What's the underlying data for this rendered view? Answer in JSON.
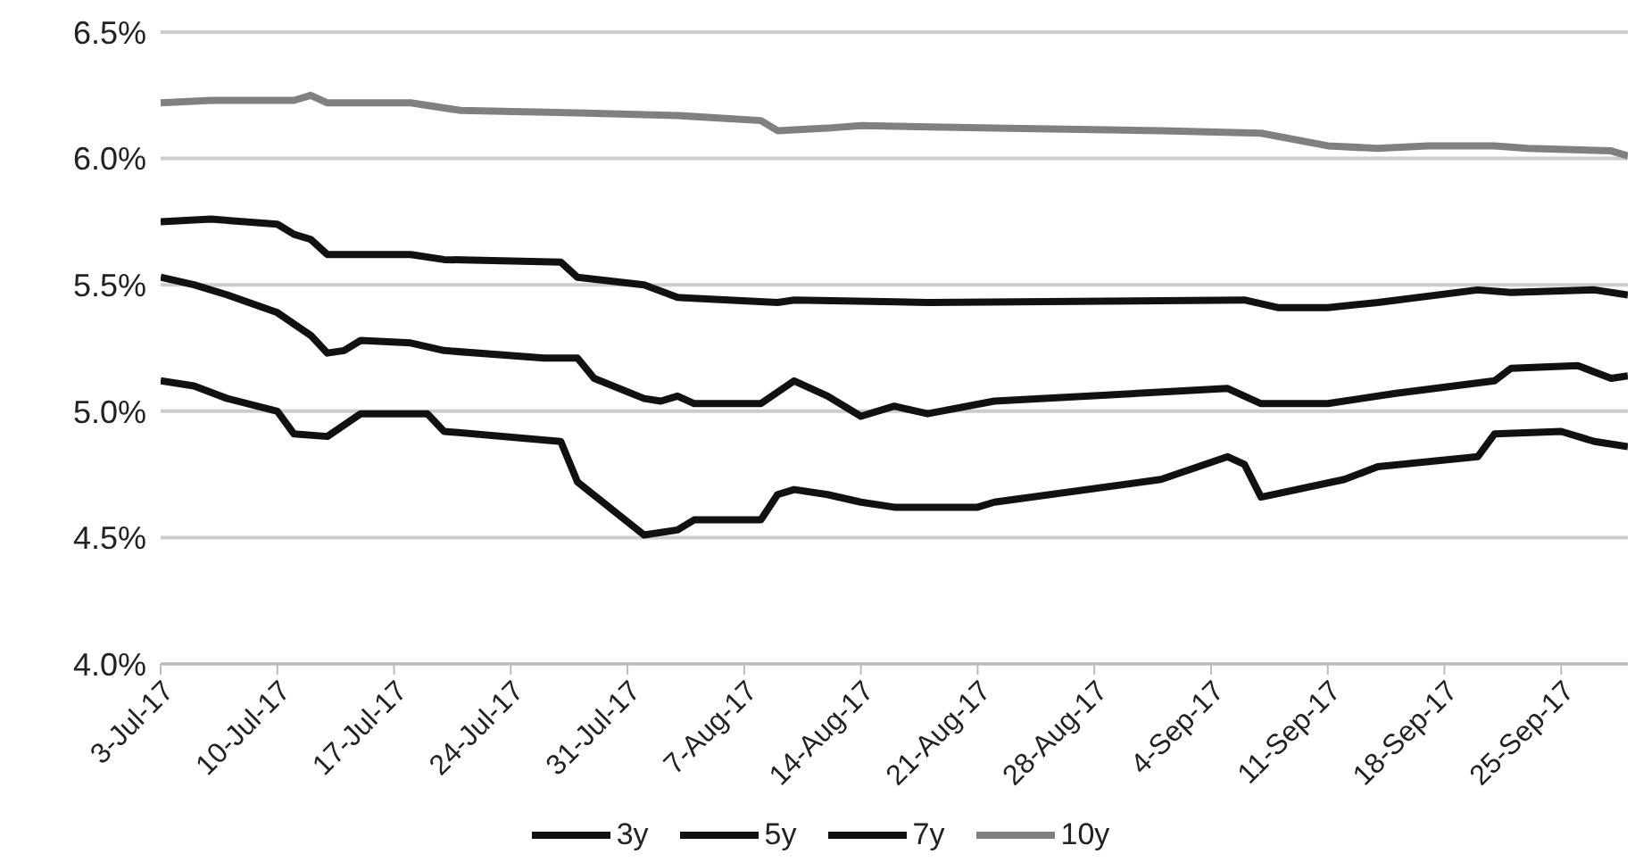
{
  "chart_data": {
    "type": "line",
    "xlim": [
      "--07-03",
      "--09-29"
    ],
    "xticks": [
      {
        "value": "--07-03",
        "label": "3-Jul-17"
      },
      {
        "value": "--07-10",
        "label": "10-Jul-17"
      },
      {
        "value": "--07-17",
        "label": "17-Jul-17"
      },
      {
        "value": "--07-24",
        "label": "24-Jul-17"
      },
      {
        "value": "--07-31",
        "label": "31-Jul-17"
      },
      {
        "value": "--08-07",
        "label": "7-Aug-17"
      },
      {
        "value": "--08-14",
        "label": "14-Aug-17"
      },
      {
        "value": "--08-21",
        "label": "21-Aug-17"
      },
      {
        "value": "--08-28",
        "label": "28-Aug-17"
      },
      {
        "value": "--09-04",
        "label": "4-Sep-17"
      },
      {
        "value": "--09-11",
        "label": "11-Sep-17"
      },
      {
        "value": "--09-18",
        "label": "18-Sep-17"
      },
      {
        "value": "--09-25",
        "label": "25-Sep-17"
      }
    ],
    "ylim": [
      4.0,
      6.5
    ],
    "yticks": [
      {
        "value": 4.0,
        "label": "4.0%"
      },
      {
        "value": 4.5,
        "label": "4.5%"
      },
      {
        "value": 5.0,
        "label": "5.0%"
      },
      {
        "value": 5.5,
        "label": "5.5%"
      },
      {
        "value": 6.0,
        "label": "6.0%"
      },
      {
        "value": 6.5,
        "label": "6.5%"
      }
    ],
    "grid": "y",
    "legend": "bottom",
    "marker": "none",
    "line_style": "solid",
    "series": [
      {
        "name": "3y",
        "color": "#111111",
        "x": [
          "--07-03",
          "--07-05",
          "--07-07",
          "--07-10",
          "--07-11",
          "--07-13",
          "--07-15",
          "--07-19",
          "--07-20",
          "--07-27",
          "--07-28",
          "--08-01",
          "--08-03",
          "--08-04",
          "--08-08",
          "--08-09",
          "--08-10",
          "--08-12",
          "--08-14",
          "--08-16",
          "--08-21",
          "--08-22",
          "--09-01",
          "--09-05",
          "--09-06",
          "--09-07",
          "--09-12",
          "--09-14",
          "--09-20",
          "--09-21",
          "--09-25",
          "--09-27",
          "--09-29"
        ],
        "values": [
          5.12,
          5.1,
          5.05,
          5.0,
          4.91,
          4.9,
          4.99,
          4.99,
          4.92,
          4.88,
          4.72,
          4.51,
          4.53,
          4.57,
          4.57,
          4.67,
          4.69,
          4.67,
          4.64,
          4.62,
          4.62,
          4.64,
          4.73,
          4.82,
          4.79,
          4.66,
          4.73,
          4.78,
          4.82,
          4.91,
          4.92,
          4.88,
          4.86
        ]
      },
      {
        "name": "5y",
        "color": "#111111",
        "x": [
          "--07-03",
          "--07-05",
          "--07-07",
          "--07-10",
          "--07-12",
          "--07-13",
          "--07-14",
          "--07-15",
          "--07-18",
          "--07-20",
          "--07-26",
          "--07-28",
          "--07-29",
          "--08-01",
          "--08-02",
          "--08-03",
          "--08-04",
          "--08-08",
          "--08-10",
          "--08-12",
          "--08-14",
          "--08-16",
          "--08-18",
          "--08-22",
          "--09-05",
          "--09-07",
          "--09-11",
          "--09-15",
          "--09-21",
          "--09-22",
          "--09-26",
          "--09-28",
          "--09-29"
        ],
        "values": [
          5.53,
          5.5,
          5.46,
          5.39,
          5.3,
          5.23,
          5.24,
          5.28,
          5.27,
          5.24,
          5.21,
          5.21,
          5.13,
          5.05,
          5.04,
          5.06,
          5.03,
          5.03,
          5.12,
          5.06,
          4.98,
          5.02,
          4.99,
          5.04,
          5.09,
          5.03,
          5.03,
          5.07,
          5.12,
          5.17,
          5.18,
          5.13,
          5.14
        ]
      },
      {
        "name": "7y",
        "color": "#111111",
        "x": [
          "--07-03",
          "--07-06",
          "--07-10",
          "--07-11",
          "--07-12",
          "--07-13",
          "--07-18",
          "--07-20",
          "--07-27",
          "--07-28",
          "--08-01",
          "--08-03",
          "--08-09",
          "--08-10",
          "--08-18",
          "--09-06",
          "--09-08",
          "--09-11",
          "--09-14",
          "--09-20",
          "--09-22",
          "--09-27",
          "--09-29"
        ],
        "values": [
          5.75,
          5.76,
          5.74,
          5.7,
          5.68,
          5.62,
          5.62,
          5.6,
          5.59,
          5.53,
          5.5,
          5.45,
          5.43,
          5.44,
          5.43,
          5.44,
          5.41,
          5.41,
          5.43,
          5.48,
          5.47,
          5.48,
          5.46
        ]
      },
      {
        "name": "10y",
        "color": "#808080",
        "x": [
          "--07-03",
          "--07-06",
          "--07-11",
          "--07-12",
          "--07-13",
          "--07-18",
          "--07-21",
          "--07-28",
          "--08-03",
          "--08-08",
          "--08-09",
          "--08-12",
          "--08-14",
          "--08-22",
          "--09-01",
          "--09-07",
          "--09-11",
          "--09-14",
          "--09-17",
          "--09-21",
          "--09-23",
          "--09-28",
          "--09-29"
        ],
        "values": [
          6.22,
          6.23,
          6.23,
          6.25,
          6.22,
          6.22,
          6.19,
          6.18,
          6.17,
          6.15,
          6.11,
          6.12,
          6.13,
          6.12,
          6.11,
          6.1,
          6.05,
          6.04,
          6.05,
          6.05,
          6.04,
          6.03,
          6.01
        ]
      }
    ]
  }
}
